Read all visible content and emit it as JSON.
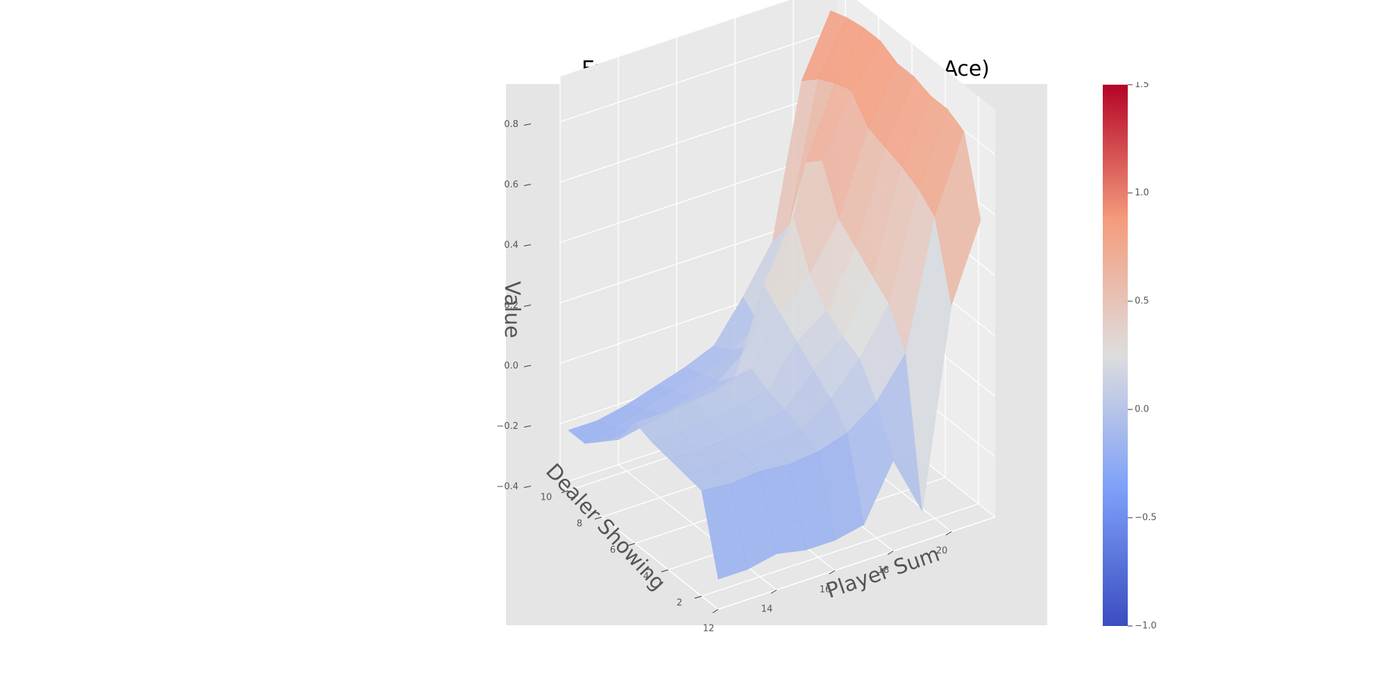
{
  "chart_data": {
    "type": "surface3d",
    "title": "Expanded state, inf decks (Usable Ace)",
    "xlabel": "Player Sum",
    "ylabel": "Dealer Showing",
    "zlabel": "Value",
    "x": [
      12,
      13,
      14,
      15,
      16,
      17,
      18,
      19,
      20,
      21
    ],
    "y": [
      1,
      2,
      3,
      4,
      5,
      6,
      7,
      8,
      9,
      10
    ],
    "x_ticks": [
      "12",
      "14",
      "16",
      "18",
      "20"
    ],
    "y_ticks": [
      "2",
      "4",
      "6",
      "8",
      "10"
    ],
    "z_ticks": [
      "−0.4",
      "−0.2",
      "0.0",
      "0.2",
      "0.4",
      "0.6",
      "0.8"
    ],
    "z": [
      [
        -0.3,
        -0.3,
        -0.28,
        -0.3,
        -0.3,
        -0.28,
        -0.1,
        -0.3,
        0.35,
        0.6
      ],
      [
        -0.05,
        -0.06,
        -0.05,
        -0.06,
        -0.05,
        -0.02,
        0.05,
        0.18,
        0.6,
        0.85
      ],
      [
        -0.04,
        -0.05,
        -0.04,
        -0.03,
        -0.02,
        0.05,
        0.15,
        0.3,
        0.65,
        0.88
      ],
      [
        -0.03,
        -0.04,
        -0.03,
        -0.02,
        0.0,
        0.1,
        0.18,
        0.35,
        0.68,
        0.88
      ],
      [
        -0.02,
        -0.02,
        -0.01,
        0.0,
        0.02,
        0.15,
        0.22,
        0.4,
        0.7,
        0.9
      ],
      [
        0.0,
        0.0,
        0.01,
        0.02,
        0.05,
        0.2,
        0.3,
        0.45,
        0.72,
        0.9
      ],
      [
        -0.1,
        -0.08,
        -0.06,
        -0.05,
        -0.02,
        0.25,
        0.45,
        0.6,
        0.8,
        0.93
      ],
      [
        -0.15,
        -0.15,
        -0.12,
        -0.1,
        -0.08,
        0.0,
        0.15,
        0.55,
        0.78,
        0.93
      ],
      [
        -0.2,
        -0.18,
        -0.15,
        -0.12,
        -0.1,
        -0.05,
        0.0,
        0.3,
        0.75,
        0.92
      ],
      [
        -0.2,
        -0.2,
        -0.18,
        -0.15,
        -0.12,
        -0.08,
        0.05,
        0.2,
        0.7,
        0.9
      ]
    ],
    "zlim": [
      -0.4,
      0.9
    ],
    "grid": true,
    "colormap": "coolwarm",
    "colorbar": {
      "min": -1.0,
      "max": 1.5,
      "ticks": [
        "−1.0",
        "−0.5",
        "0.0",
        "0.5",
        "1.0",
        "1.5"
      ]
    }
  },
  "colors": {
    "pane_back": "#e5e5e5",
    "pane_side": "#ececec",
    "grid": "#ffffff",
    "low": "#3b4cc0",
    "mid": "#dddddd",
    "high": "#b40426"
  }
}
